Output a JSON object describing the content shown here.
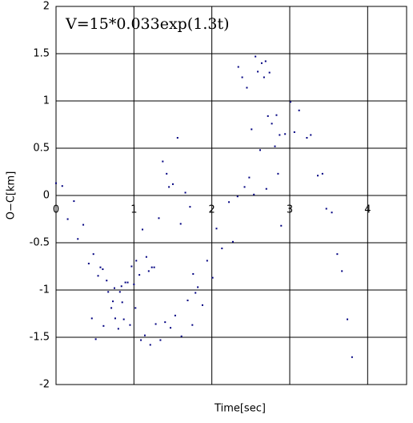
{
  "chart_data": {
    "type": "scatter",
    "annotation": "V=15*0.033exp(1.3t)",
    "x_label": "Time[sec]",
    "y_label": "O−C[km]",
    "color": "#000080",
    "grid": true,
    "xlim": [
      0,
      4.5
    ],
    "xticks": [
      0,
      1,
      2,
      3,
      4
    ],
    "ylim": [
      -2,
      2
    ],
    "yticks": [
      -2,
      -1.5,
      -1,
      -0.5,
      0,
      0.5,
      1,
      1.5,
      2
    ],
    "x": [
      0,
      0.08,
      0.15,
      0.23,
      0.28,
      0.35,
      0.42,
      0.46,
      0.48,
      0.51,
      0.54,
      0.57,
      0.6,
      0.61,
      0.65,
      0.67,
      0.71,
      0.73,
      0.75,
      0.76,
      0.8,
      0.82,
      0.84,
      0.85,
      0.87,
      0.89,
      0.92,
      0.95,
      0.97,
      1.0,
      1.02,
      1.03,
      1.07,
      1.09,
      1.11,
      1.14,
      1.16,
      1.19,
      1.21,
      1.23,
      1.26,
      1.28,
      1.32,
      1.34,
      1.37,
      1.4,
      1.42,
      1.45,
      1.47,
      1.5,
      1.53,
      1.56,
      1.6,
      1.61,
      1.66,
      1.69,
      1.72,
      1.75,
      1.76,
      1.79,
      1.82,
      1.88,
      1.94,
      2.01,
      2.06,
      2.13,
      2.22,
      2.27,
      2.33,
      2.34,
      2.39,
      2.42,
      2.45,
      2.48,
      2.51,
      2.54,
      2.56,
      2.59,
      2.62,
      2.64,
      2.67,
      2.69,
      2.7,
      2.72,
      2.74,
      2.77,
      2.81,
      2.83,
      2.85,
      2.87,
      2.89,
      2.94,
      3.01,
      3.06,
      3.12,
      3.22,
      3.27,
      3.36,
      3.42,
      3.47,
      3.54,
      3.61,
      3.67,
      3.74,
      3.8
    ],
    "values": [
      0.13,
      0.1,
      -0.25,
      -0.06,
      -0.46,
      -0.31,
      -0.72,
      -1.3,
      -0.62,
      -1.52,
      -0.85,
      -0.76,
      -0.78,
      -1.38,
      -0.9,
      -1.02,
      -1.19,
      -1.12,
      -0.98,
      -1.3,
      -1.41,
      -1.02,
      -0.96,
      -1.13,
      -1.31,
      -0.92,
      -0.92,
      -1.37,
      -0.75,
      -0.94,
      -1.19,
      -0.69,
      -0.84,
      -1.53,
      -0.36,
      -1.48,
      -0.65,
      -0.8,
      -1.58,
      -0.76,
      -0.76,
      -1.36,
      -0.24,
      -1.53,
      0.36,
      -1.34,
      0.23,
      0.09,
      -1.4,
      0.12,
      -1.27,
      0.61,
      -0.3,
      -1.49,
      0.03,
      -1.11,
      -0.12,
      -1.37,
      -0.83,
      -1.03,
      -0.97,
      -1.16,
      -0.69,
      -0.87,
      -0.35,
      -0.56,
      -0.07,
      -0.49,
      -0.01,
      1.36,
      1.25,
      0.09,
      1.14,
      0.19,
      0.7,
      0.01,
      1.47,
      1.31,
      0.48,
      1.4,
      1.25,
      1.42,
      0.07,
      0.84,
      1.3,
      0.76,
      0.52,
      0.85,
      0.23,
      0.64,
      -0.32,
      0.65,
      0.99,
      0.67,
      0.9,
      0.61,
      0.64,
      0.21,
      0.23,
      -0.14,
      -0.18,
      -0.62,
      -0.8,
      -1.31,
      -1.71
    ]
  }
}
